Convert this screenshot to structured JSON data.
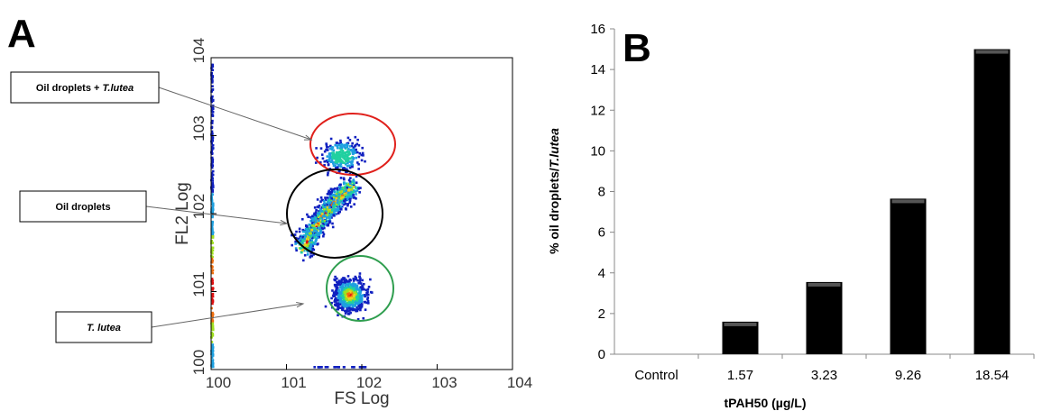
{
  "chart_data": [
    {
      "panel": "A",
      "type": "scatter",
      "xlabel": "FS Log",
      "ylabel": "FL2 Log",
      "x_tick_labels": [
        "100",
        "101",
        "102",
        "103",
        "104"
      ],
      "y_tick_labels": [
        "100",
        "101",
        "102",
        "103",
        "104"
      ],
      "x_scale": "log",
      "y_scale": "log",
      "xlim": [
        1,
        10000
      ],
      "ylim": [
        1,
        10000
      ],
      "clusters": [
        {
          "label": "Oil droplets + T.lutea",
          "label_parts": [
            "Oil droplets + ",
            "T.lutea"
          ],
          "ring_color": "#e0201b",
          "center": [
            55,
            550
          ],
          "spread": [
            2.2,
            1.8
          ],
          "points": 260
        },
        {
          "label": "Oil droplets",
          "label_parts": [
            "Oil droplets"
          ],
          "ring_color": "#000000",
          "center": [
            35,
            100
          ],
          "spread": [
            2.8,
            2.6
          ],
          "points": 900
        },
        {
          "label": "T. lutea",
          "label_parts": [
            "T. lutea"
          ],
          "ring_color": "#2f9e4f",
          "center": [
            70,
            9
          ],
          "spread": [
            1.9,
            1.9
          ],
          "points": 650
        }
      ],
      "density_colors": [
        "#1020c0",
        "#1ea0e0",
        "#20d0a0",
        "#a0e020",
        "#f0d020",
        "#f07010",
        "#e01010"
      ]
    },
    {
      "panel": "B",
      "type": "bar",
      "categories": [
        "Control",
        "1.57",
        "3.23",
        "9.26",
        "18.54"
      ],
      "values": [
        0,
        1.6,
        3.55,
        7.65,
        15.0
      ],
      "xlabel": "tPAH50 (µg/L)",
      "ylabel": "% oil droplets/T.lutea",
      "ylim": [
        0,
        16
      ],
      "yticks": [
        0,
        2,
        4,
        6,
        8,
        10,
        12,
        14,
        16
      ],
      "bar_color": "#000000"
    }
  ],
  "panel_labels": {
    "a": "A",
    "b": "B"
  }
}
